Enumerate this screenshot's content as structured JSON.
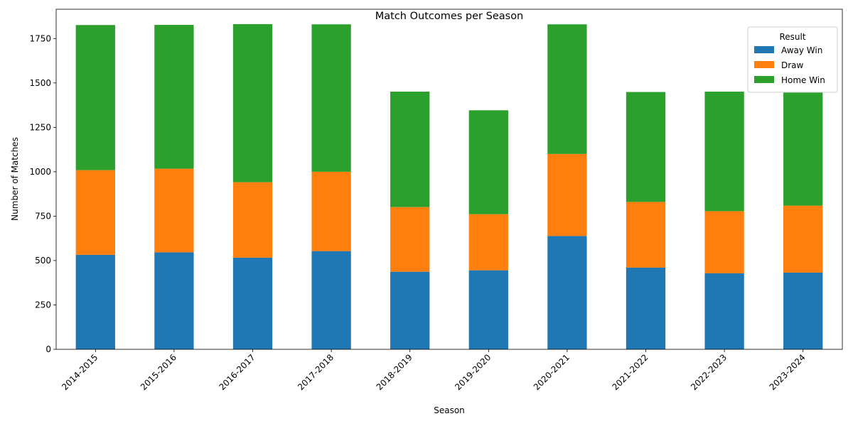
{
  "chart_data": {
    "type": "bar",
    "stacked": true,
    "title": "Match Outcomes per Season",
    "xlabel": "Season",
    "ylabel": "Number of Matches",
    "ylim": [
      0,
      1915
    ],
    "yticks": [
      0,
      250,
      500,
      750,
      1000,
      1250,
      1500,
      1750
    ],
    "grid": false,
    "legend": {
      "title": "Result",
      "placement": "top-right"
    },
    "categories": [
      "2014-2015",
      "2015-2016",
      "2016-2017",
      "2017-2018",
      "2018-2019",
      "2019-2020",
      "2020-2021",
      "2021-2022",
      "2022-2023",
      "2023-2024"
    ],
    "series": [
      {
        "name": "Away Win",
        "color": "#1f77b4",
        "values": [
          532,
          546,
          516,
          553,
          437,
          445,
          638,
          460,
          428,
          432
        ]
      },
      {
        "name": "Draw",
        "color": "#ff7f0e",
        "values": [
          477,
          471,
          425,
          447,
          364,
          316,
          462,
          370,
          350,
          377
        ]
      },
      {
        "name": "Home Win",
        "color": "#2ca02c",
        "values": [
          817,
          810,
          890,
          830,
          650,
          585,
          730,
          619,
          673,
          640
        ]
      }
    ]
  }
}
